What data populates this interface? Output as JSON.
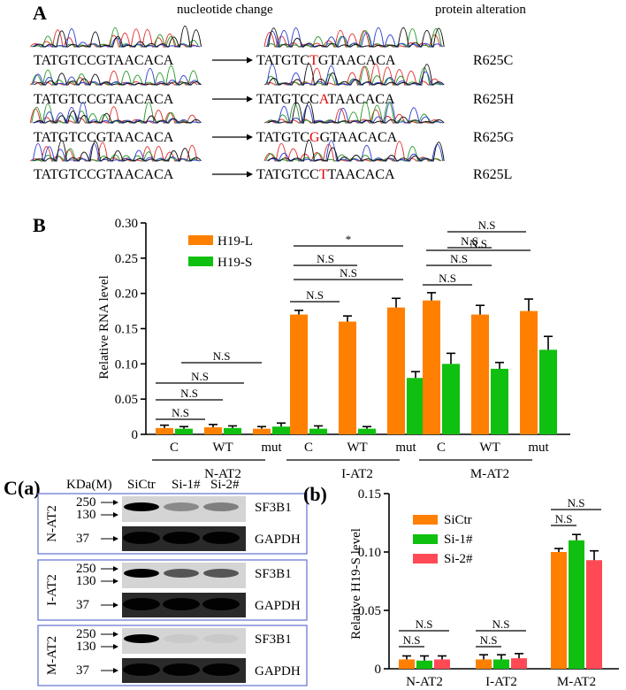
{
  "panelA": {
    "label": "A",
    "header_left": "nucleotide change",
    "header_right": "protein alteration",
    "rows": [
      {
        "wt": "TATGTCCGTAACACA",
        "mut_pre": "TATGTC",
        "mut_hl": "T",
        "mut_post": "GTAACACA",
        "protein": "R625C"
      },
      {
        "wt": "TATGTCCGTAACACA",
        "mut_pre": "TATGTCC",
        "mut_hl": "A",
        "mut_post": "TAACACA",
        "protein": "R625H"
      },
      {
        "wt": "TATGTCCGTAACACA",
        "mut_pre": "TATGTC",
        "mut_hl": "G",
        "mut_post": "GTAACACA",
        "protein": "R625G"
      },
      {
        "wt": "TATGTCCGTAACACA",
        "mut_pre": "TATGTCC",
        "mut_hl": "T",
        "mut_post": "TAACACA",
        "protein": "R625L"
      }
    ],
    "trace_colors": [
      "#e03030",
      "#2a9a2a",
      "#3040d0",
      "#111111"
    ],
    "highlight_color": "#e00000"
  },
  "panelB": {
    "label": "B",
    "ylabel": "Relative RNA level",
    "yticks": [
      "0",
      "0.05",
      "0.10",
      "0.15",
      "0.20",
      "0.25",
      "0.30"
    ],
    "xcat": [
      "C",
      "WT",
      "mut",
      "C",
      "WT",
      "mut",
      "C",
      "WT",
      "mut"
    ],
    "groups": [
      "N-AT2",
      "I-AT2",
      "M-AT2"
    ],
    "legend": [
      "H19-L",
      "H19-S"
    ],
    "sig": {
      "ns": "N.S",
      "star": "*"
    }
  },
  "panelC": {
    "label": "C(a)",
    "header": [
      "KDa(M)",
      "SiCtr",
      "Si-1#",
      "Si-2#"
    ],
    "rows": [
      "N-AT2",
      "I-AT2",
      "M-AT2"
    ],
    "markers": [
      "250",
      "130",
      "37"
    ],
    "bands": [
      "SF3B1",
      "GAPDH"
    ],
    "sf3b1_levels": [
      [
        1.0,
        0.35,
        0.4
      ],
      [
        1.0,
        0.6,
        0.6
      ],
      [
        1.0,
        0.05,
        0.05
      ]
    ]
  },
  "panelCb": {
    "label": "(b)",
    "ylabel": "Relative H19-S level",
    "yticks": [
      "0",
      "0.05",
      "0.10",
      "0.15"
    ],
    "groups": [
      "N-AT2",
      "I-AT2",
      "M-AT2"
    ],
    "legend": [
      "SiCtr",
      "Si-1#",
      "Si-2#"
    ],
    "sig": {
      "ns": "N.S"
    }
  },
  "chart_data": [
    {
      "type": "bar",
      "categories": [
        "N-AT2 C",
        "N-AT2 WT",
        "N-AT2 mut",
        "I-AT2 C",
        "I-AT2 WT",
        "I-AT2 mut",
        "M-AT2 C",
        "M-AT2 WT",
        "M-AT2 mut"
      ],
      "series": [
        {
          "name": "H19-L",
          "color": "#ff8000",
          "values": [
            0.009,
            0.01,
            0.008,
            0.17,
            0.16,
            0.18,
            0.19,
            0.17,
            0.175
          ],
          "err": [
            0.004,
            0.004,
            0.003,
            0.006,
            0.008,
            0.013,
            0.011,
            0.013,
            0.017
          ]
        },
        {
          "name": "H19-S",
          "color": "#10c010",
          "values": [
            0.008,
            0.009,
            0.011,
            0.008,
            0.008,
            0.08,
            0.1,
            0.093,
            0.12
          ],
          "err": [
            0.003,
            0.003,
            0.005,
            0.004,
            0.003,
            0.009,
            0.015,
            0.009,
            0.019
          ]
        }
      ],
      "ylabel": "Relative RNA level",
      "ylim": [
        0,
        0.3
      ],
      "legend": "top-left"
    },
    {
      "type": "bar",
      "categories": [
        "N-AT2",
        "I-AT2",
        "M-AT2"
      ],
      "series": [
        {
          "name": "SiCtr",
          "color": "#ff8000",
          "values": [
            0.008,
            0.008,
            0.1
          ],
          "err": [
            0.003,
            0.004,
            0.003
          ]
        },
        {
          "name": "Si-1#",
          "color": "#10c010",
          "values": [
            0.007,
            0.008,
            0.11
          ],
          "err": [
            0.004,
            0.004,
            0.005
          ]
        },
        {
          "name": "Si-2#",
          "color": "#ff4a55",
          "values": [
            0.008,
            0.009,
            0.093
          ],
          "err": [
            0.003,
            0.004,
            0.008
          ]
        }
      ],
      "ylabel": "Relative H19-S level",
      "ylim": [
        0,
        0.15
      ],
      "legend": "top-left"
    }
  ]
}
